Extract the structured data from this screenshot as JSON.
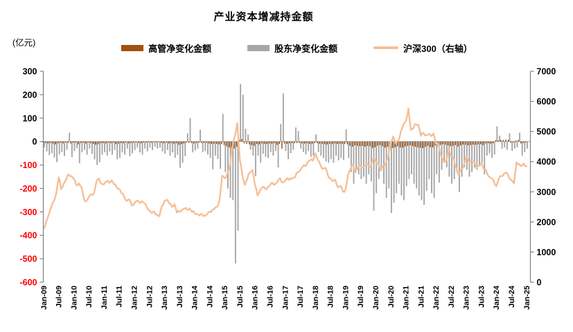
{
  "title": "产业资本增减持金额",
  "unit_label": "(亿元)",
  "legend": [
    {
      "label": "高管净变化金额",
      "color": "#A24F0D",
      "type": "bar"
    },
    {
      "label": "股东净变化金额",
      "color": "#A6A6A6",
      "type": "bar"
    },
    {
      "label": "沪深300（右轴）",
      "color": "#F5BF97",
      "type": "line"
    }
  ],
  "colors": {
    "executives_bar": "#A24F0D",
    "shareholders_bar": "#A6A6A6",
    "csi300_line": "#F5BF97",
    "axis": "#7F7F7F",
    "zero_line": "#A6A6A6",
    "tick_label_positive": "#000000",
    "tick_label_negative": "#FF0000"
  },
  "chart_data": {
    "type": "bar",
    "subtype": "monthly bars (left axis) + index line (right axis)",
    "title": "产业资本增减持金额",
    "xlabel": "",
    "ylabel_left": "(亿元)",
    "frequency": "monthly",
    "x_start": "Jan-09",
    "x_end": "Jan-25",
    "left_axis": {
      "min": -600,
      "max": 300,
      "step": 100,
      "negative_labels_red": true
    },
    "right_axis": {
      "min": 0,
      "max": 7000,
      "step": 1000
    },
    "grid": false,
    "legend_position": "top-center",
    "x_tick_labels": [
      "Jan-09",
      "Jul-09",
      "Jan-10",
      "Jul-10",
      "Jan-11",
      "Jul-11",
      "Jan-12",
      "Jul-12",
      "Jan-13",
      "Jul-13",
      "Jan-14",
      "Jul-14",
      "Jan-15",
      "Jul-15",
      "Jan-16",
      "Jul-16",
      "Jan-17",
      "Jul-17",
      "Jan-18",
      "Jul-18",
      "Jan-19",
      "Jul-19",
      "Jan-20",
      "Jul-20",
      "Jan-21",
      "Jul-21",
      "Jan-22",
      "Jul-22",
      "Jan-23",
      "Jul-23",
      "Jan-24",
      "Jul-24",
      "Jan-25"
    ],
    "series": [
      {
        "name": "高管净变化金额",
        "axis": "left",
        "type": "bar",
        "color": "#A24F0D",
        "values": [
          -4,
          -6,
          -8,
          -6,
          -9,
          -12,
          -7,
          -5,
          -8,
          -4,
          -6,
          -9,
          -5,
          -4,
          -12,
          -6,
          -5,
          -8,
          -4,
          -7,
          -10,
          -13,
          -11,
          -7,
          -6,
          -8,
          -5,
          -7,
          -5,
          -10,
          -9,
          -6,
          -7,
          -4,
          -8,
          -6,
          -5,
          -3,
          -6,
          -7,
          -4,
          -5,
          -3,
          -5,
          -3,
          -4,
          -3,
          -5,
          -7,
          -5,
          -8,
          -6,
          -9,
          -7,
          -14,
          -11,
          -8,
          -5,
          -6,
          -6,
          -8,
          -6,
          -5,
          -6,
          -5,
          -6,
          -8,
          -10,
          -9,
          -10,
          -12,
          -10,
          -15,
          -20,
          -25,
          -28,
          -30,
          -22,
          8,
          10,
          -8,
          -10,
          -12,
          -15,
          -18,
          -10,
          -12,
          -8,
          -10,
          -11,
          -8,
          -9,
          -7,
          -14,
          -10,
          -30,
          -8,
          -10,
          -8,
          -6,
          -7,
          -7,
          -6,
          -8,
          -9,
          -7,
          -10,
          -9,
          -6,
          -7,
          -9,
          -10,
          -11,
          -12,
          -10,
          -11,
          -8,
          -10,
          -9,
          -10,
          -10,
          -12,
          -18,
          -22,
          -16,
          -18,
          -20,
          -19,
          -22,
          -18,
          -20,
          -28,
          -24,
          -18,
          -15,
          -20,
          -26,
          -22,
          -30,
          -27,
          -24,
          -20,
          -25,
          -26,
          -21,
          -18,
          -16,
          -20,
          -22,
          -25,
          -26,
          -28,
          -23,
          -18,
          -24,
          -25,
          -16,
          -19,
          -14,
          -11,
          -13,
          -17,
          -19,
          -18,
          -15,
          -21,
          -16,
          -13,
          -14,
          -16,
          -15,
          -13,
          -14,
          -12,
          -11,
          -15,
          -8,
          -7,
          -9,
          -7,
          6,
          4,
          8,
          7,
          9,
          8,
          -5,
          -4,
          5,
          7,
          -8,
          -6,
          -4
        ]
      },
      {
        "name": "股东净变化金额",
        "axis": "left",
        "type": "bar",
        "color": "#A6A6A6",
        "values": [
          -25,
          -42,
          -58,
          -50,
          -68,
          -88,
          -55,
          -45,
          -62,
          -35,
          38,
          -66,
          -40,
          -28,
          -92,
          -46,
          -36,
          -56,
          -30,
          -52,
          -76,
          -100,
          -88,
          -56,
          -46,
          -60,
          -42,
          -56,
          -36,
          -76,
          -70,
          -46,
          -56,
          -30,
          -62,
          -50,
          -36,
          -26,
          -46,
          -56,
          -30,
          -42,
          -26,
          -36,
          -22,
          -30,
          -26,
          -42,
          -52,
          -36,
          -60,
          -46,
          -70,
          -56,
          -112,
          -90,
          -62,
          35,
          100,
          -46,
          -38,
          -30,
          50,
          -45,
          -40,
          -55,
          -70,
          -118,
          -60,
          -75,
          -116,
          118,
          -130,
          -200,
          -240,
          -250,
          -520,
          -380,
          245,
          200,
          55,
          30,
          -35,
          -60,
          -148,
          -60,
          -90,
          -52,
          -65,
          -70,
          -45,
          -60,
          -40,
          -110,
          75,
          205,
          -40,
          -75,
          -50,
          -35,
          60,
          45,
          -30,
          -45,
          -55,
          -40,
          -65,
          -60,
          30,
          -45,
          -60,
          -70,
          -85,
          -90,
          -75,
          -90,
          -60,
          -80,
          -70,
          -78,
          52,
          -70,
          -130,
          -180,
          -120,
          -140,
          -160,
          -150,
          -180,
          -140,
          -170,
          -295,
          -220,
          -160,
          -120,
          -180,
          -240,
          -200,
          -305,
          -260,
          -220,
          -180,
          -230,
          -250,
          -190,
          -160,
          -140,
          -180,
          -200,
          -230,
          -250,
          -270,
          -210,
          -160,
          -220,
          -240,
          -140,
          -175,
          -120,
          -90,
          -110,
          -150,
          -180,
          -160,
          -130,
          -215,
          -150,
          -110,
          -120,
          -150,
          -130,
          -110,
          -120,
          -100,
          -90,
          -140,
          -60,
          -50,
          -70,
          -55,
          65,
          25,
          -30,
          -25,
          -35,
          35,
          -40,
          -30,
          -25,
          38,
          -60,
          -45,
          -30
        ]
      },
      {
        "name": "沪深300",
        "axis": "right",
        "type": "line",
        "color": "#F5BF97",
        "values": [
          1790,
          2010,
          2240,
          2480,
          2680,
          2950,
          3480,
          3090,
          3270,
          3410,
          3580,
          3520,
          3430,
          3220,
          3280,
          3150,
          2760,
          2690,
          2830,
          2920,
          2950,
          3340,
          3440,
          3270,
          3250,
          3340,
          3300,
          3380,
          3250,
          3150,
          3100,
          2950,
          2840,
          2700,
          2750,
          2550,
          2620,
          2700,
          2650,
          2690,
          2630,
          2500,
          2390,
          2290,
          2340,
          2250,
          2190,
          2520,
          2700,
          2740,
          2600,
          2500,
          2590,
          2310,
          2340,
          2400,
          2440,
          2410,
          2450,
          2330,
          2310,
          2260,
          2210,
          2250,
          2210,
          2250,
          2340,
          2400,
          2450,
          2500,
          2780,
          3530,
          3450,
          3600,
          3850,
          4450,
          4840,
          5280,
          4050,
          3550,
          3230,
          3440,
          3650,
          3730,
          3240,
          2880,
          3050,
          3160,
          3100,
          3150,
          3210,
          3300,
          3250,
          3340,
          3450,
          3310,
          3360,
          3450,
          3440,
          3450,
          3480,
          3650,
          3720,
          3830,
          3850,
          3990,
          4050,
          4030,
          4280,
          4050,
          3900,
          3760,
          3800,
          3550,
          3450,
          3350,
          3390,
          3150,
          3200,
          3010,
          3070,
          3550,
          3750,
          3910,
          3650,
          3810,
          3860,
          3800,
          3890,
          3900,
          3850,
          4100,
          4000,
          3940,
          3700,
          3860,
          3950,
          4160,
          4650,
          4840,
          4600,
          4700,
          5000,
          5210,
          5350,
          5760,
          5050,
          5100,
          5250,
          5220,
          4850,
          4950,
          4870,
          4900,
          4850,
          4940,
          4600,
          4550,
          4200,
          4020,
          4000,
          4450,
          4170,
          4100,
          3800,
          3540,
          3750,
          3870,
          4180,
          4000,
          4050,
          4000,
          3800,
          3850,
          3950,
          3750,
          3690,
          3500,
          3440,
          3340,
          3180,
          3440,
          3520,
          3600,
          3640,
          3480,
          3400,
          3280,
          3980,
          3920,
          3850,
          3930,
          3850
        ]
      }
    ]
  }
}
